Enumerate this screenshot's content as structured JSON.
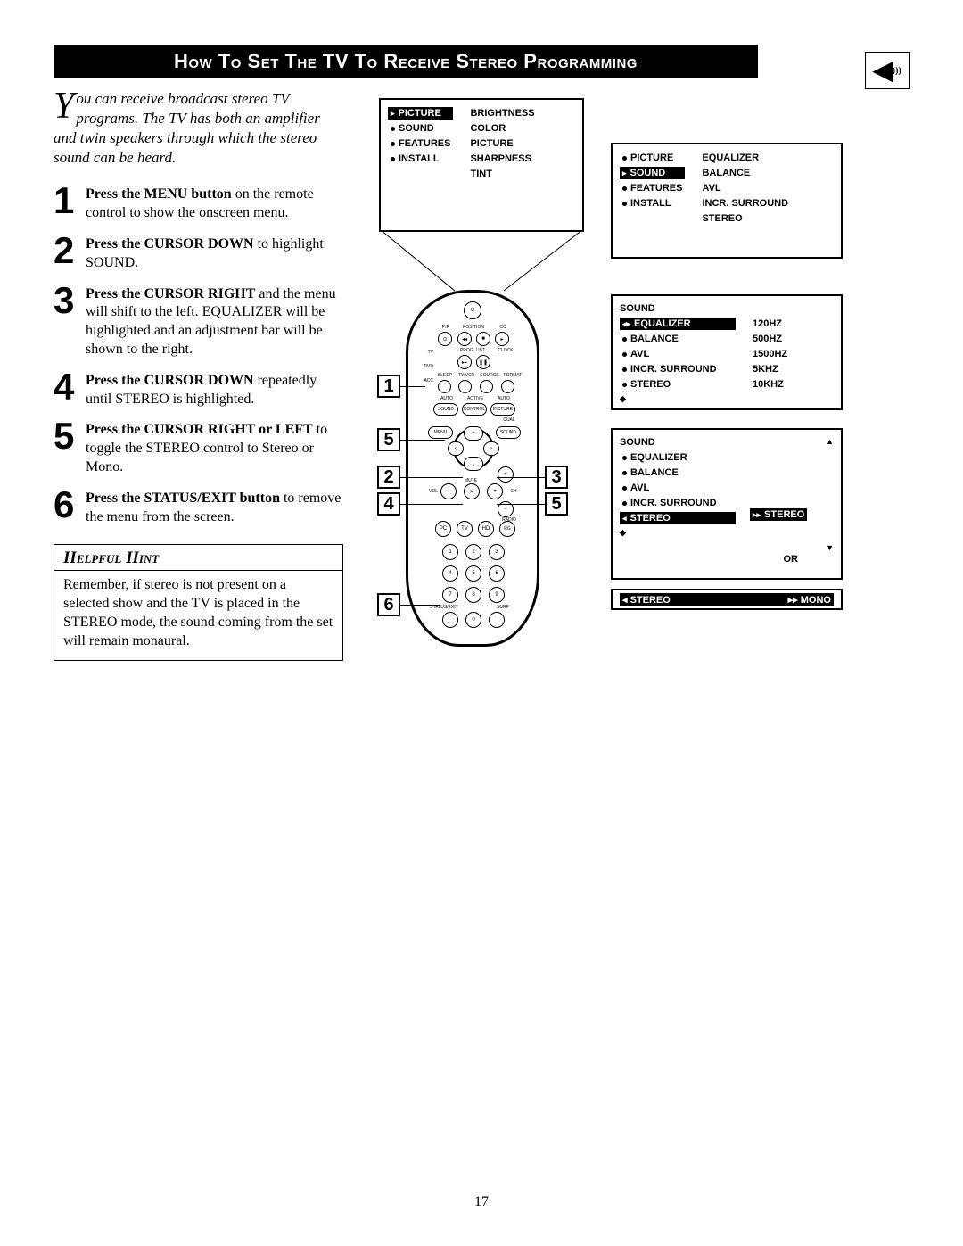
{
  "title": "How To Set The TV To Receive Stereo Programming",
  "intro": {
    "dropcap": "Y",
    "text": "ou can receive broadcast stereo TV programs. The TV has both an amplifier and twin speakers through which the stereo sound can be heard."
  },
  "steps": [
    {
      "num": "1",
      "bold": "Press the MENU button",
      "rest": " on the remote control to show the onscreen menu."
    },
    {
      "num": "2",
      "bold": "Press the CURSOR DOWN",
      "rest": " to highlight SOUND."
    },
    {
      "num": "3",
      "bold": "Press the CURSOR RIGHT",
      "rest": " and the menu will shift to the left. EQUALIZER will be highlighted and an adjustment bar will be shown to the right."
    },
    {
      "num": "4",
      "bold": "Press the CURSOR DOWN",
      "rest": " repeatedly until STEREO is highlighted."
    },
    {
      "num": "5",
      "bold": "Press the CURSOR RIGHT or LEFT",
      "rest": " to toggle the STEREO control to Stereo or Mono."
    },
    {
      "num": "6",
      "bold": "Press the STATUS/EXIT button",
      "rest": " to remove the menu from the screen."
    }
  ],
  "hint": {
    "title": "Helpful Hint",
    "body": "Remember, if stereo is not present on a selected show and the TV is placed in the STEREO mode, the sound coming from the set will remain monaural."
  },
  "screen1": {
    "left": [
      {
        "label": "PICTURE",
        "sel": true
      },
      {
        "label": "SOUND",
        "sel": false
      },
      {
        "label": "FEATURES",
        "sel": false
      },
      {
        "label": "INSTALL",
        "sel": false
      }
    ],
    "right": [
      "BRIGHTNESS",
      "COLOR",
      "PICTURE",
      "SHARPNESS",
      "TINT"
    ]
  },
  "screen2": {
    "left": [
      {
        "label": "PICTURE",
        "sel": false
      },
      {
        "label": "SOUND",
        "sel": true
      },
      {
        "label": "FEATURES",
        "sel": false
      },
      {
        "label": "INSTALL",
        "sel": false
      }
    ],
    "right": [
      "EQUALIZER",
      "BALANCE",
      "AVL",
      "INCR. SURROUND",
      "STEREO"
    ]
  },
  "screen3": {
    "head": "SOUND",
    "left": [
      {
        "label": "EQUALIZER",
        "sel": true,
        "val": "120HZ"
      },
      {
        "label": "BALANCE",
        "sel": false,
        "val": "500HZ"
      },
      {
        "label": "AVL",
        "sel": false,
        "val": "1500HZ"
      },
      {
        "label": "INCR. SURROUND",
        "sel": false,
        "val": "5KHZ"
      },
      {
        "label": "STEREO",
        "sel": false,
        "val": "10KHZ"
      }
    ]
  },
  "screen4": {
    "head": "SOUND",
    "items": [
      {
        "label": "EQUALIZER",
        "sel": false
      },
      {
        "label": "BALANCE",
        "sel": false
      },
      {
        "label": "AVL",
        "sel": false
      },
      {
        "label": "INCR. SURROUND",
        "sel": false
      },
      {
        "label": "STEREO",
        "sel": true,
        "val": "STEREO"
      }
    ],
    "or": "OR",
    "alt": {
      "label": "STEREO",
      "val": "MONO"
    }
  },
  "remote_labels": {
    "pip": "PIP",
    "position": "POSITION",
    "cc": "CC",
    "tv": "TV",
    "proglist": "PROG. LIST",
    "clock": "CLOCK",
    "dvd": "DVD",
    "acc": "ACC",
    "sleep": "SLEEP",
    "tvvcr": "TV/VCR",
    "source": "SOURCE",
    "format": "FORMAT",
    "auto": "AUTO",
    "active": "ACTIVE",
    "sound": "SOUND",
    "control": "CONTROL",
    "picture": "PICTURE",
    "dual": "DUAL",
    "menu": "MENU",
    "sound2": "SOUND",
    "vol": "VOL",
    "ch": "CH",
    "mute": "MUTE",
    "pc": "PC",
    "tv2": "TV",
    "hd": "HD",
    "radio": "RADIO",
    "rg": "RG",
    "statusexit": "STATUS/EXIT",
    "surf": "SURF"
  },
  "page": "17"
}
